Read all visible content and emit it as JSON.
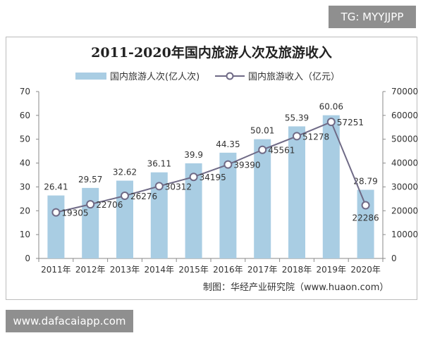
{
  "watermark_top": "TG: MYYJJPP",
  "watermark_bottom": "www.dafacaiapp.com",
  "source": "制图：华经产业研究院（www.huaon.com）",
  "colors": {
    "bar": "#a9cde3",
    "line": "#6f6a86",
    "marker_fill": "#ffffff"
  },
  "chart_data": {
    "type": "bar",
    "title": "2011-2020年国内旅游人次及旅游收入",
    "categories": [
      "2011年",
      "2012年",
      "2013年",
      "2014年",
      "2015年",
      "2016年",
      "2017年",
      "2018年",
      "2019年",
      "2020年"
    ],
    "series": [
      {
        "name": "国内旅游人次(亿人次)",
        "type": "bar",
        "axis": "left",
        "values": [
          26.41,
          29.57,
          32.62,
          36.11,
          39.9,
          44.35,
          50.01,
          55.39,
          60.06,
          28.79
        ],
        "labels": [
          "26.41",
          "29.57",
          "32.62",
          "36.11",
          "39.9",
          "44.35",
          "50.01",
          "55.39",
          "60.06",
          "28.79"
        ]
      },
      {
        "name": "国内旅游收入（亿元）",
        "type": "line",
        "axis": "right",
        "values": [
          19305,
          22706,
          26276,
          30312,
          34195,
          39390,
          45561,
          51278,
          57251,
          22286
        ],
        "labels": [
          "19305",
          "22706",
          "26276",
          "30312",
          "34195",
          "39390",
          "45561",
          "51278",
          "57251",
          "22286"
        ]
      }
    ],
    "y_left": {
      "min": 0,
      "max": 70,
      "ticks": [
        "0",
        "10",
        "20",
        "30",
        "40",
        "50",
        "60",
        "70"
      ]
    },
    "y_right": {
      "min": 0,
      "max": 70000,
      "ticks": [
        "0",
        "10000",
        "20000",
        "30000",
        "40000",
        "50000",
        "60000",
        "70000"
      ]
    },
    "legend_position": "top",
    "grid": false
  }
}
